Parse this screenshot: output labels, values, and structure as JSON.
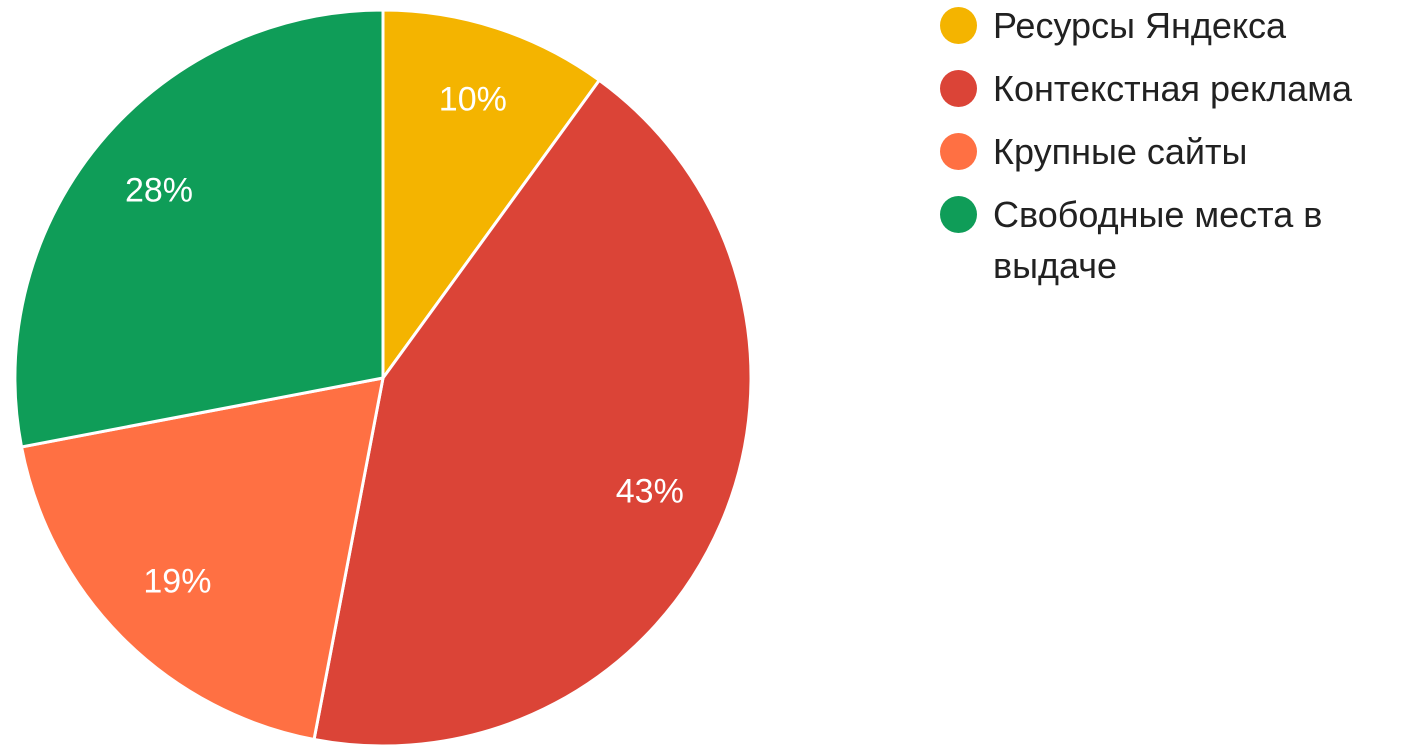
{
  "chart_data": {
    "type": "pie",
    "categories": [
      "Ресурсы Яндекса",
      "Контекстная реклама",
      "Крупные сайты",
      "Свободные места в выдаче"
    ],
    "values": [
      10,
      43,
      19,
      28
    ],
    "value_labels": [
      "10%",
      "43%",
      "19%",
      "28%"
    ],
    "colors": [
      "#f4b400",
      "#db4437",
      "#ff7043",
      "#0f9d58"
    ],
    "legend": "right"
  }
}
